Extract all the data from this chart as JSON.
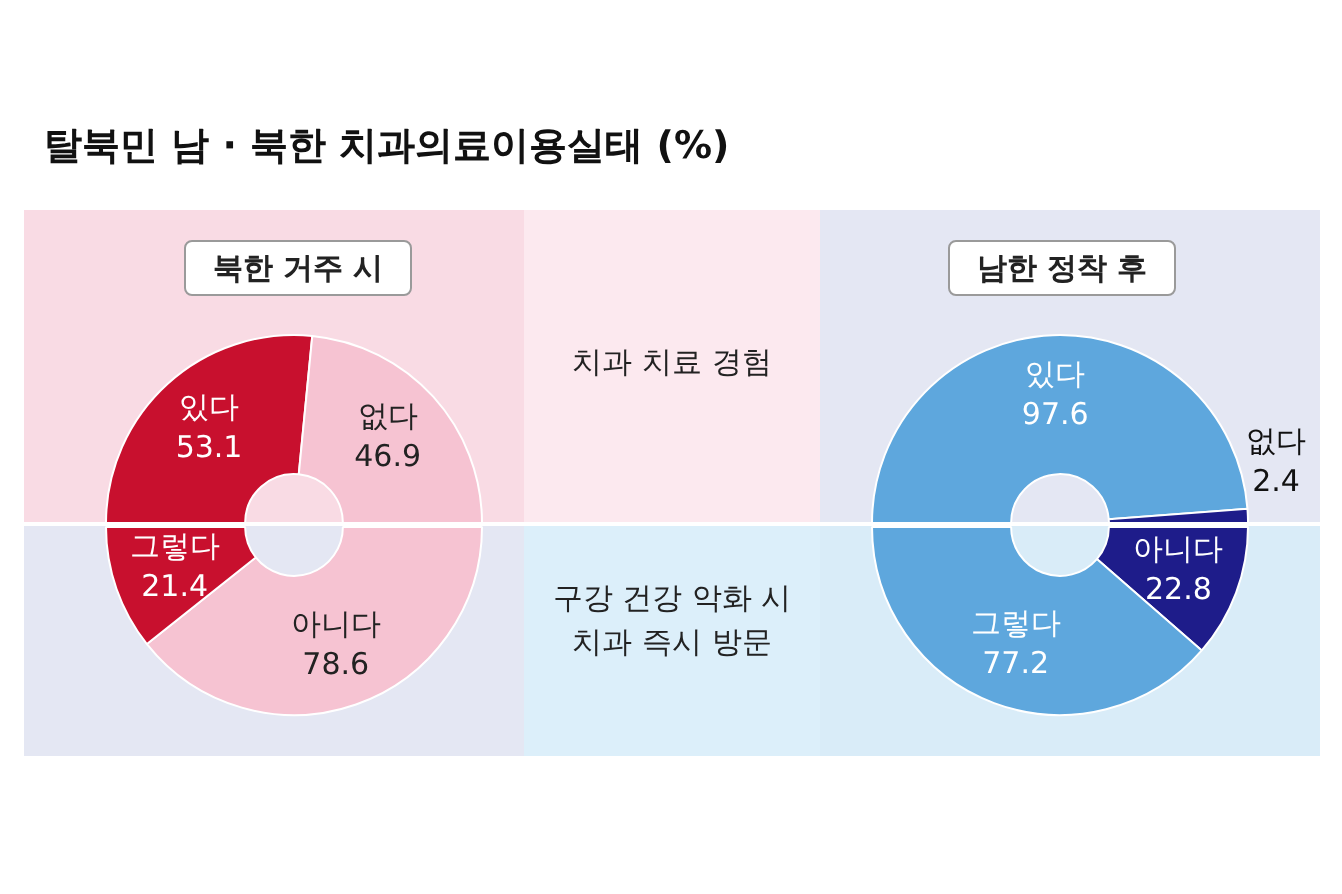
{
  "chart_data": [
    {
      "type": "other",
      "title": "탈북민 남 · 북한 치과의료이용실태 (%)",
      "annotations": [
        "북한 거주 시",
        "남한 정착 후",
        "치과 치료 경험",
        "구강 건강 악화 시\n치과 즉시 방문"
      ]
    },
    {
      "type": "donut",
      "categories": [
        "있다",
        "없다"
      ],
      "values": [
        53.1,
        46.9
      ],
      "colors": [
        "#c8102e",
        "#f6c3d2"
      ],
      "data_labels": true,
      "legend": false
    },
    {
      "type": "donut",
      "categories": [
        "있다",
        "없다"
      ],
      "values": [
        97.6,
        2.4
      ],
      "colors": [
        "#5ea7dd",
        "#1e1c8a"
      ],
      "data_labels": true,
      "legend": false
    },
    {
      "type": "donut",
      "categories": [
        "아니다",
        "그렇다"
      ],
      "values": [
        78.6,
        21.4
      ],
      "colors": [
        "#f6c3d2",
        "#c8102e"
      ],
      "data_labels": true,
      "legend": false
    },
    {
      "type": "donut",
      "categories": [
        "아니다",
        "그렇다"
      ],
      "values": [
        22.8,
        77.2
      ],
      "colors": [
        "#1e1c8a",
        "#5ea7dd"
      ],
      "data_labels": true,
      "legend": false
    }
  ]
}
